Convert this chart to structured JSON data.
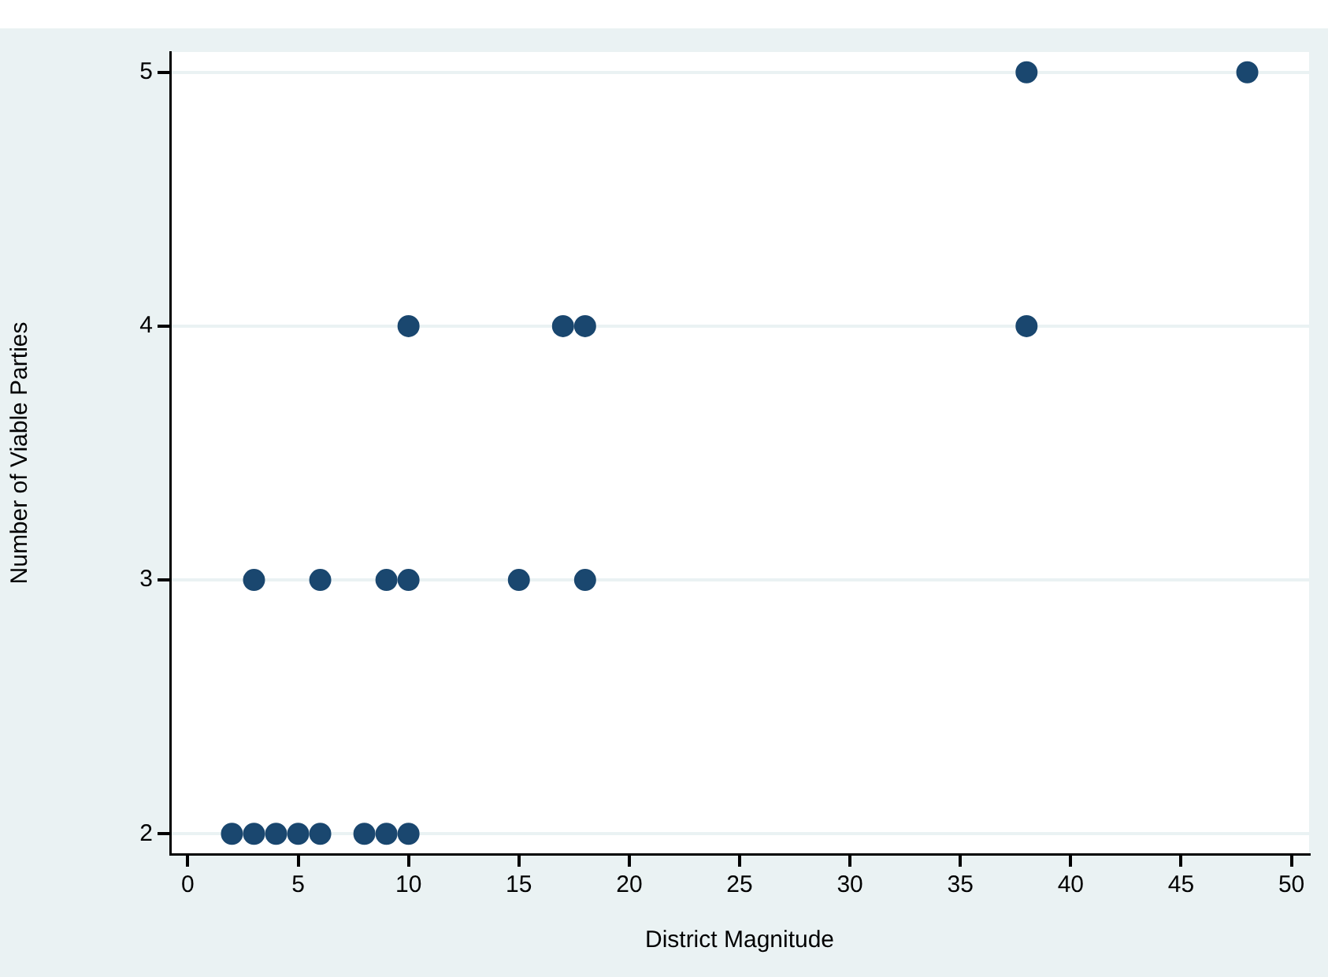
{
  "chart_data": {
    "type": "scatter",
    "xlabel": "District Magnitude",
    "ylabel": "Number of Viable Parties",
    "x": [
      2,
      3,
      4,
      5,
      6,
      8,
      9,
      10,
      3,
      6,
      9,
      10,
      15,
      18,
      10,
      17,
      18,
      38,
      38,
      48
    ],
    "series": [
      {
        "color": "#1a476f",
        "values": [
          2,
          2,
          2,
          2,
          2,
          2,
          2,
          2,
          3,
          3,
          3,
          3,
          3,
          3,
          4,
          4,
          4,
          4,
          5,
          5
        ]
      }
    ],
    "xlim": [
      -0.8,
      50.8
    ],
    "xticks": [
      0,
      5,
      10,
      15,
      20,
      25,
      30,
      35,
      40,
      45,
      50
    ],
    "ylim": [
      1.92,
      5.08
    ],
    "yticks": [
      2,
      3,
      4,
      5
    ],
    "grid": "y",
    "legend": false,
    "marker": "circle"
  }
}
